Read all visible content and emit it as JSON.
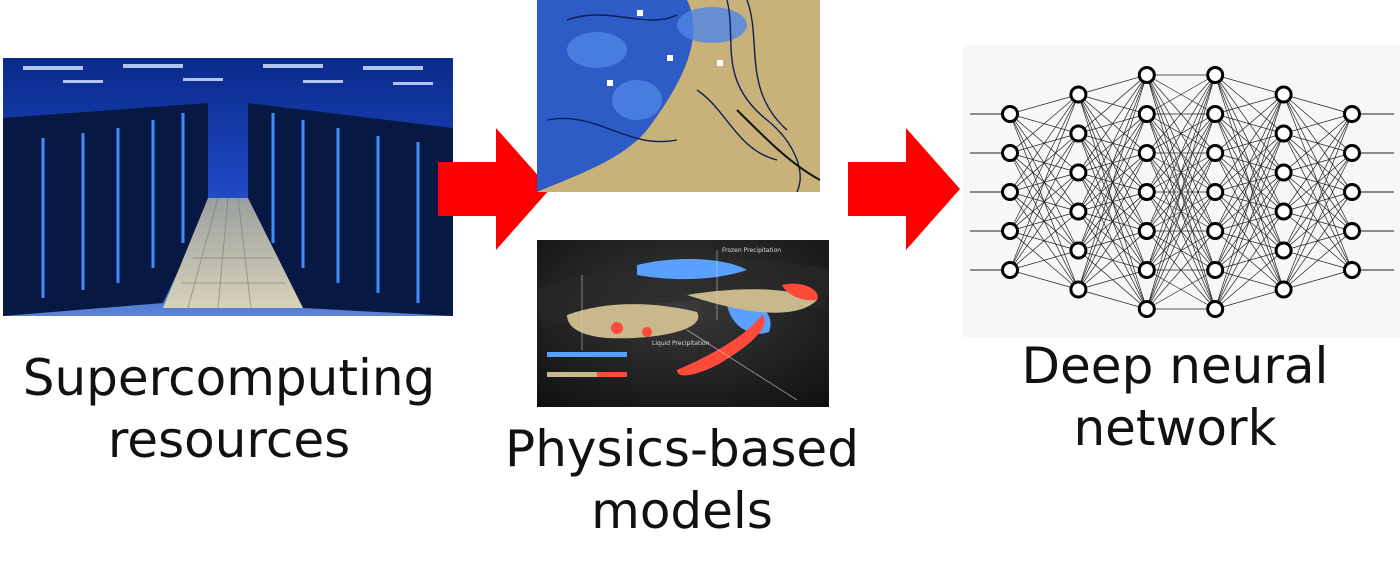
{
  "diagram": {
    "stages": [
      {
        "id": "supercomputing",
        "caption_lines": [
          "Supercomputing",
          "resources"
        ]
      },
      {
        "id": "physics-models",
        "caption_lines": [
          "Physics-based",
          "models"
        ]
      },
      {
        "id": "neural-net",
        "caption_lines": [
          "Deep neural",
          "network"
        ]
      }
    ],
    "inset_labels": {
      "frozen": "Frozen Precipitation",
      "liquid": "Liquid Precipitation"
    },
    "network_layers": [
      5,
      6,
      7,
      7,
      6,
      5
    ],
    "colors": {
      "arrow": "#ff0000",
      "caption": "#111111",
      "node_stroke": "#000000"
    }
  }
}
